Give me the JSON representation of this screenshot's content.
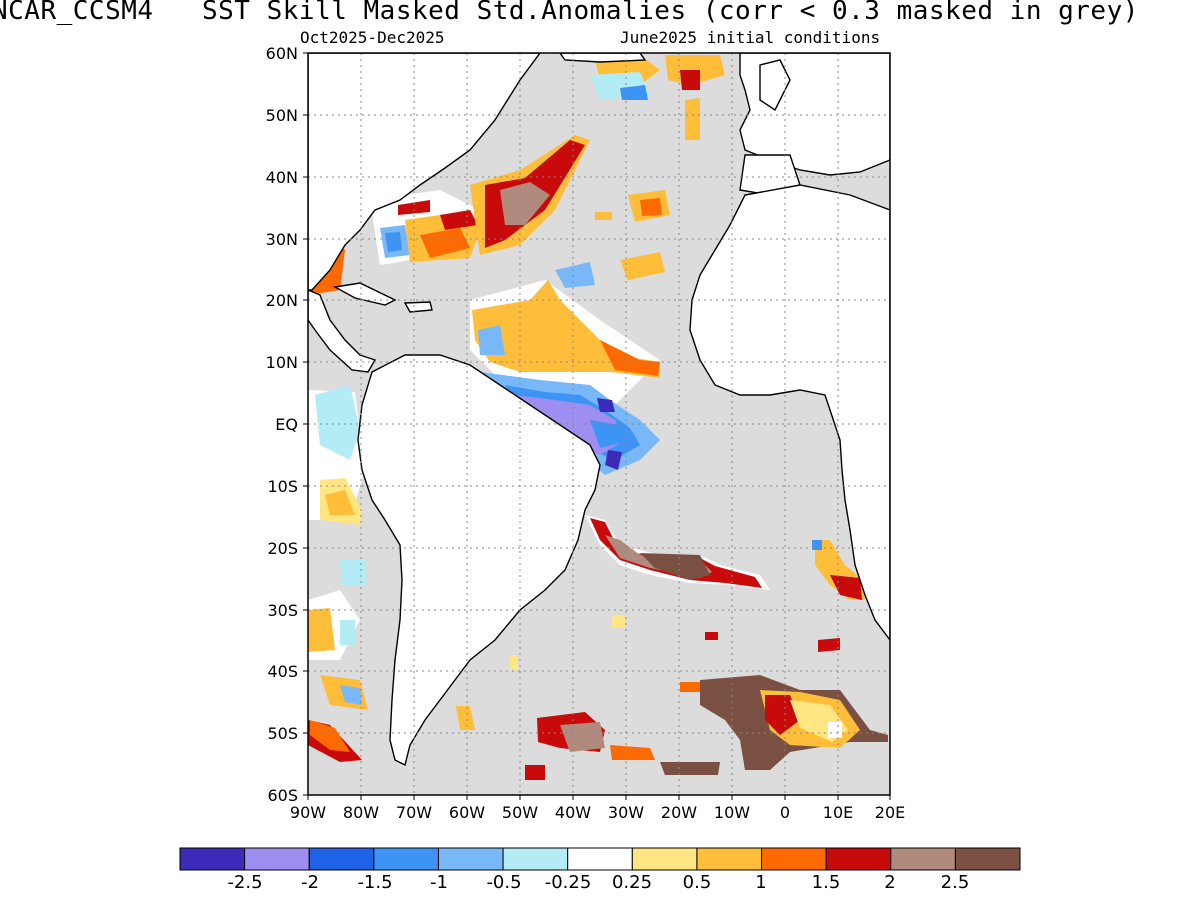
{
  "header": {
    "title": "NCAR_CCSM4   SST Skill Masked Std.Anomalies (corr < 0.3 masked in grey)",
    "period": "Oct2025-Dec2025",
    "init": "June2025 initial conditions"
  },
  "axes": {
    "lat_labels": [
      "60N",
      "50N",
      "40N",
      "30N",
      "20N",
      "10N",
      "EQ",
      "10S",
      "20S",
      "30S",
      "40S",
      "50S",
      "60S"
    ],
    "lon_labels": [
      "90W",
      "80W",
      "70W",
      "60W",
      "50W",
      "40W",
      "30W",
      "20W",
      "10W",
      "0",
      "10E",
      "20E"
    ]
  },
  "colorbar": {
    "labels": [
      "-2.5",
      "-2",
      "-1.5",
      "-1",
      "-0.5",
      "-0.25",
      "0.25",
      "0.5",
      "1",
      "1.5",
      "2",
      "2.5"
    ],
    "colors": [
      "#3b2bb8",
      "#9f8ef2",
      "#1f62e6",
      "#3d94f4",
      "#79b8f8",
      "#b4ecf6",
      "#ffffff",
      "#ffe682",
      "#ffbe3a",
      "#ff6a00",
      "#c80a0a",
      "#b08a7c",
      "#7a5043"
    ]
  },
  "map": {
    "extent": {
      "lon": [
        -90,
        20
      ],
      "lat": [
        -60,
        60
      ]
    },
    "mask_color": "#dcdcdc",
    "land_color": "#ffffff",
    "gridlines": "dotted"
  }
}
